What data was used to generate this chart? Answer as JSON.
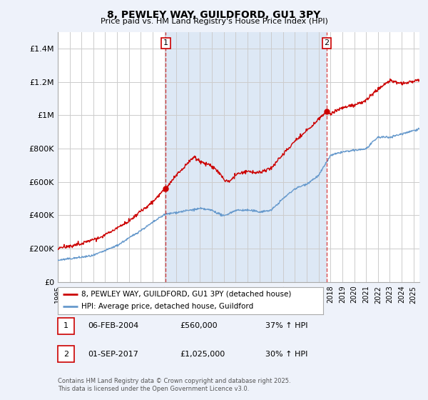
{
  "title": "8, PEWLEY WAY, GUILDFORD, GU1 3PY",
  "subtitle": "Price paid vs. HM Land Registry's House Price Index (HPI)",
  "ylim": [
    0,
    1500000
  ],
  "yticks": [
    0,
    200000,
    400000,
    600000,
    800000,
    1000000,
    1200000,
    1400000
  ],
  "ytick_labels": [
    "£0",
    "£200K",
    "£400K",
    "£600K",
    "£800K",
    "£1M",
    "£1.2M",
    "£1.4M"
  ],
  "xlim_start": 1995.0,
  "xlim_end": 2025.5,
  "xtick_years": [
    1995,
    1996,
    1997,
    1998,
    1999,
    2000,
    2001,
    2002,
    2003,
    2004,
    2005,
    2006,
    2007,
    2008,
    2009,
    2010,
    2011,
    2012,
    2013,
    2014,
    2015,
    2016,
    2017,
    2018,
    2019,
    2020,
    2021,
    2022,
    2023,
    2024,
    2025
  ],
  "vline1_x": 2004.1,
  "vline2_x": 2017.67,
  "vline_color": "#cc0000",
  "span_color": "#dde8f5",
  "marker1_label": "1",
  "marker1_x": 2004.1,
  "marker1_y": 560000,
  "marker2_label": "2",
  "marker2_x": 2017.67,
  "marker2_y": 1025000,
  "bg_color": "#eef2fa",
  "plot_bg": "#ffffff",
  "plot_area_bg": "#e8eef8",
  "grid_color": "#cccccc",
  "red_line_color": "#cc0000",
  "blue_line_color": "#6699cc",
  "legend_label_red": "8, PEWLEY WAY, GUILDFORD, GU1 3PY (detached house)",
  "legend_label_blue": "HPI: Average price, detached house, Guildford",
  "note1_date": "06-FEB-2004",
  "note1_price": "£560,000",
  "note1_hpi": "37% ↑ HPI",
  "note2_date": "01-SEP-2017",
  "note2_price": "£1,025,000",
  "note2_hpi": "30% ↑ HPI",
  "footer": "Contains HM Land Registry data © Crown copyright and database right 2025.\nThis data is licensed under the Open Government Licence v3.0."
}
